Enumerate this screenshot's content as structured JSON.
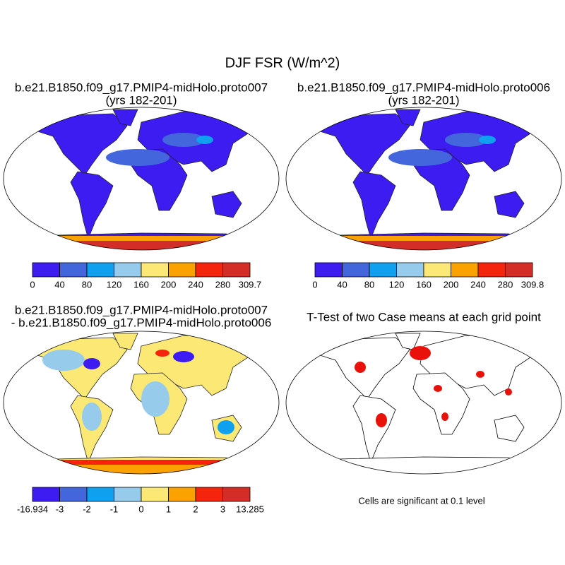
{
  "title": "DJF FSR (W/m^2)",
  "panels": [
    {
      "kind": "mean",
      "title_lines": [
        "b.e21.B1850.f09_g17.PMIP4-midHolo.proto007",
        "(yrs 182-201)"
      ],
      "colorbar": {
        "colors": [
          "#3c1cf0",
          "#4466dd",
          "#10a0f0",
          "#96cbeb",
          "#fbe875",
          "#fba200",
          "#f5250d",
          "#d42d28"
        ],
        "labels": [
          "0",
          "40",
          "80",
          "120",
          "160",
          "200",
          "240",
          "280",
          "309.7"
        ]
      }
    },
    {
      "kind": "mean",
      "title_lines": [
        "b.e21.B1850.f09_g17.PMIP4-midHolo.proto006",
        "(yrs 182-201)"
      ],
      "colorbar": {
        "colors": [
          "#3c1cf0",
          "#4466dd",
          "#10a0f0",
          "#96cbeb",
          "#fbe875",
          "#fba200",
          "#f5250d",
          "#d42d28"
        ],
        "labels": [
          "0",
          "40",
          "80",
          "120",
          "160",
          "200",
          "240",
          "280",
          "309.8"
        ]
      }
    },
    {
      "kind": "diff",
      "title_lines": [
        "b.e21.B1850.f09_g17.PMIP4-midHolo.proto007",
        "- b.e21.B1850.f09_g17.PMIP4-midHolo.proto006"
      ],
      "colorbar": {
        "colors": [
          "#3c1cf0",
          "#4466dd",
          "#10a0f0",
          "#96cbeb",
          "#fbe875",
          "#fba200",
          "#f5250d",
          "#d42d28"
        ],
        "labels": [
          "-16.934",
          "-3",
          "-2",
          "-1",
          "0",
          "1",
          "2",
          "3",
          "13.285"
        ]
      }
    },
    {
      "kind": "ttest",
      "title_lines": [
        "T-Test of two Case means at each grid point"
      ],
      "note": "Cells are significant at 0.1 level"
    }
  ]
}
